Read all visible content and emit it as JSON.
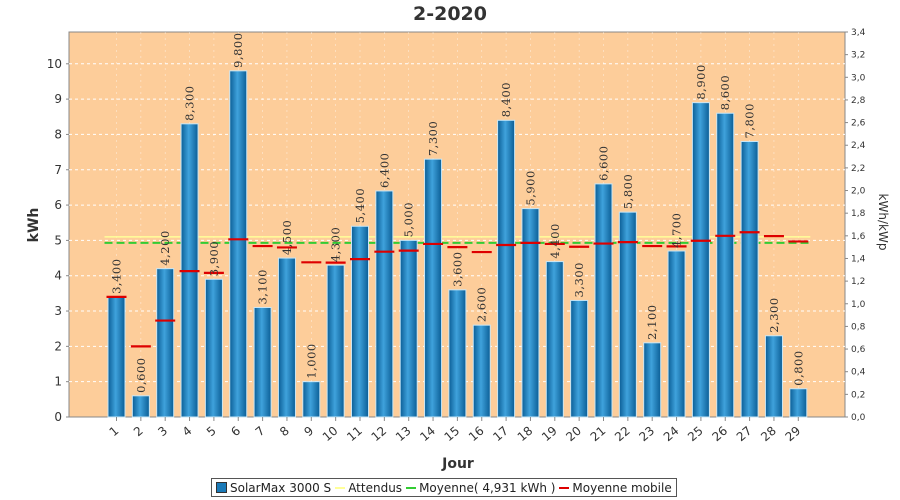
{
  "chart_data": {
    "type": "bar",
    "title": "2-2020",
    "xlabel": "Jour",
    "ylabel": "kWh",
    "y2label": "kWh/kWp",
    "ylim": [
      0,
      10.9
    ],
    "y2lim": [
      0,
      3.4
    ],
    "yticks": [
      "0",
      "1",
      "2",
      "3",
      "4",
      "5",
      "6",
      "7",
      "8",
      "9",
      "10"
    ],
    "y2ticks": [
      "0,0",
      "0,2",
      "0,4",
      "0,6",
      "0,8",
      "1,0",
      "1,2",
      "1,4",
      "1,6",
      "1,8",
      "2,0",
      "2,2",
      "2,4",
      "2,6",
      "2,8",
      "3,0",
      "3,2",
      "3,4"
    ],
    "grid": true,
    "background_color": "#fdcd9a",
    "categories": [
      "1",
      "2",
      "3",
      "4",
      "5",
      "6",
      "7",
      "8",
      "9",
      "10",
      "11",
      "12",
      "13",
      "14",
      "15",
      "16",
      "17",
      "18",
      "19",
      "20",
      "21",
      "22",
      "23",
      "24",
      "25",
      "26",
      "27",
      "28",
      "29"
    ],
    "series": [
      {
        "name": "SolarMax 3000 S",
        "kind": "bar",
        "color": "#1a7ab8",
        "values": [
          3.4,
          0.6,
          4.2,
          8.3,
          3.9,
          9.8,
          3.1,
          4.5,
          1.0,
          4.3,
          5.4,
          6.4,
          5.0,
          7.3,
          3.6,
          2.6,
          8.4,
          5.9,
          4.4,
          3.3,
          6.6,
          5.8,
          2.1,
          4.7,
          8.9,
          8.6,
          7.8,
          2.3,
          0.8
        ],
        "labels": [
          "3,400",
          "0,600",
          "4,200",
          "8,300",
          "3,900",
          "9,800",
          "3,100",
          "4,500",
          "1,000",
          "4,300",
          "5,400",
          "6,400",
          "5,000",
          "7,300",
          "3,600",
          "2,600",
          "8,400",
          "5,900",
          "4,400",
          "3,300",
          "6,600",
          "5,800",
          "2,100",
          "4,700",
          "8,900",
          "8,600",
          "7,800",
          "2,300",
          "0,800"
        ]
      },
      {
        "name": "Attendus",
        "kind": "line",
        "color": "#ffff99",
        "value": 5.1
      },
      {
        "name": "Moyenne( 4,931 kWh )",
        "kind": "hline",
        "color": "#33cc33",
        "value": 4.931
      },
      {
        "name": "Moyenne mobile",
        "kind": "segments",
        "color": "#dd0000",
        "values": [
          3.4,
          2.0,
          2.73,
          4.13,
          4.08,
          5.03,
          4.84,
          4.8,
          4.38,
          4.37,
          4.47,
          4.68,
          4.71,
          4.9,
          4.81,
          4.67,
          4.87,
          4.93,
          4.9,
          4.82,
          4.91,
          4.95,
          4.84,
          4.83,
          4.99,
          5.13,
          5.23,
          5.12,
          4.97
        ]
      }
    ]
  },
  "legend": {
    "items": [
      {
        "label": "SolarMax 3000 S",
        "color": "#1a7ab8",
        "kind": "box"
      },
      {
        "label": "Attendus",
        "color": "#ffff99",
        "kind": "line"
      },
      {
        "label": "Moyenne( 4,931 kWh )",
        "color": "#33cc33",
        "kind": "line"
      },
      {
        "label": "Moyenne mobile",
        "color": "#dd0000",
        "kind": "line"
      }
    ]
  }
}
